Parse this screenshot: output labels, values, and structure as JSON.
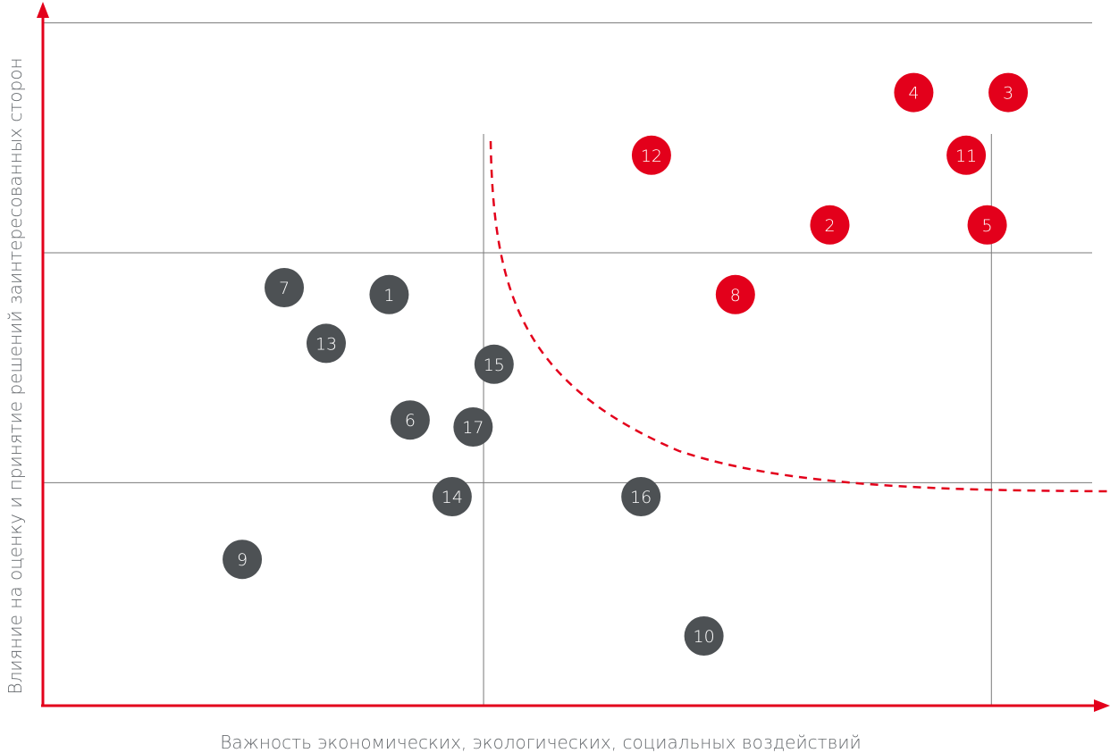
{
  "chart_data": {
    "type": "scatter",
    "title": "",
    "xlabel": "Важность экономических, экологических, социальных воздействий",
    "ylabel": "Влияние на оценку и принятие решений заинтересованных сторон",
    "xlim": [
      0,
      10
    ],
    "ylim": [
      0,
      10
    ],
    "grid": {
      "x_lines": [
        4.2
      ],
      "x_lines_partial": [
        9.04
      ],
      "y_lines": [
        3.2,
        6.5,
        9.8
      ]
    },
    "threshold_curve": {
      "style": "dashed",
      "color": "#e3001b"
    },
    "colors": {
      "material": "#e3001b",
      "other": "#4d5154",
      "axis": "#e3001b",
      "grid": "#7a7a7a"
    },
    "points": [
      {
        "label": "1",
        "x": 3.3,
        "y": 5.9,
        "group": "other"
      },
      {
        "label": "2",
        "x": 7.5,
        "y": 6.9,
        "group": "material"
      },
      {
        "label": "3",
        "x": 9.2,
        "y": 8.8,
        "group": "material"
      },
      {
        "label": "4",
        "x": 8.3,
        "y": 8.8,
        "group": "material"
      },
      {
        "label": "5",
        "x": 9.0,
        "y": 6.9,
        "group": "material"
      },
      {
        "label": "6",
        "x": 3.5,
        "y": 4.1,
        "group": "other"
      },
      {
        "label": "7",
        "x": 2.3,
        "y": 6.0,
        "group": "other"
      },
      {
        "label": "8",
        "x": 6.6,
        "y": 5.9,
        "group": "material"
      },
      {
        "label": "9",
        "x": 1.9,
        "y": 2.1,
        "group": "other"
      },
      {
        "label": "10",
        "x": 6.3,
        "y": 1.0,
        "group": "other"
      },
      {
        "label": "11",
        "x": 8.8,
        "y": 7.9,
        "group": "material"
      },
      {
        "label": "12",
        "x": 5.8,
        "y": 7.9,
        "group": "material"
      },
      {
        "label": "13",
        "x": 2.7,
        "y": 5.2,
        "group": "other"
      },
      {
        "label": "14",
        "x": 3.9,
        "y": 3.0,
        "group": "other"
      },
      {
        "label": "15",
        "x": 4.3,
        "y": 4.9,
        "group": "other"
      },
      {
        "label": "16",
        "x": 5.7,
        "y": 3.0,
        "group": "other"
      },
      {
        "label": "17",
        "x": 4.1,
        "y": 4.0,
        "group": "other"
      }
    ]
  }
}
